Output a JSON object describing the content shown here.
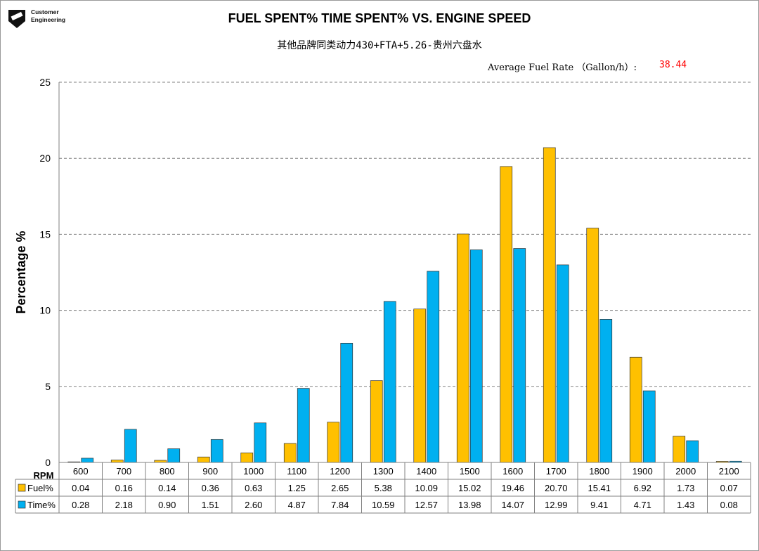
{
  "logo": {
    "line1": "Customer",
    "line2": "Engineering"
  },
  "header": {
    "title": "FUEL SPENT% TIME SPENT% VS. ENGINE SPEED",
    "subtitle": "其他品牌同类动力430+FTA+5.26-贵州六盘水",
    "rate_label": "Average Fuel Rate （Gallon/h）:",
    "rate_value": "38.44"
  },
  "chart_data": {
    "type": "bar",
    "title": "FUEL SPENT% TIME SPENT% VS. ENGINE SPEED",
    "subtitle": "其他品牌同类动力430+FTA+5.26-贵州六盘水",
    "xlabel": "RPM",
    "ylabel": "Percentage %",
    "ylim": [
      0,
      25
    ],
    "yticks": [
      0,
      5,
      10,
      15,
      20,
      25
    ],
    "grid": true,
    "categories": [
      "600",
      "700",
      "800",
      "900",
      "1000",
      "1100",
      "1200",
      "1300",
      "1400",
      "1500",
      "1600",
      "1700",
      "1800",
      "1900",
      "2000",
      "2100"
    ],
    "series": [
      {
        "name": "Fuel%",
        "color": "#FFC000",
        "values": [
          0.04,
          0.16,
          0.14,
          0.36,
          0.63,
          1.25,
          2.65,
          5.38,
          10.09,
          15.02,
          19.46,
          20.7,
          15.41,
          6.92,
          1.73,
          0.07
        ]
      },
      {
        "name": "Time%",
        "color": "#00B0F0",
        "values": [
          0.28,
          2.18,
          0.9,
          1.51,
          2.6,
          4.87,
          7.84,
          10.59,
          12.57,
          13.98,
          14.07,
          12.99,
          9.41,
          4.71,
          1.43,
          0.08
        ]
      }
    ]
  }
}
